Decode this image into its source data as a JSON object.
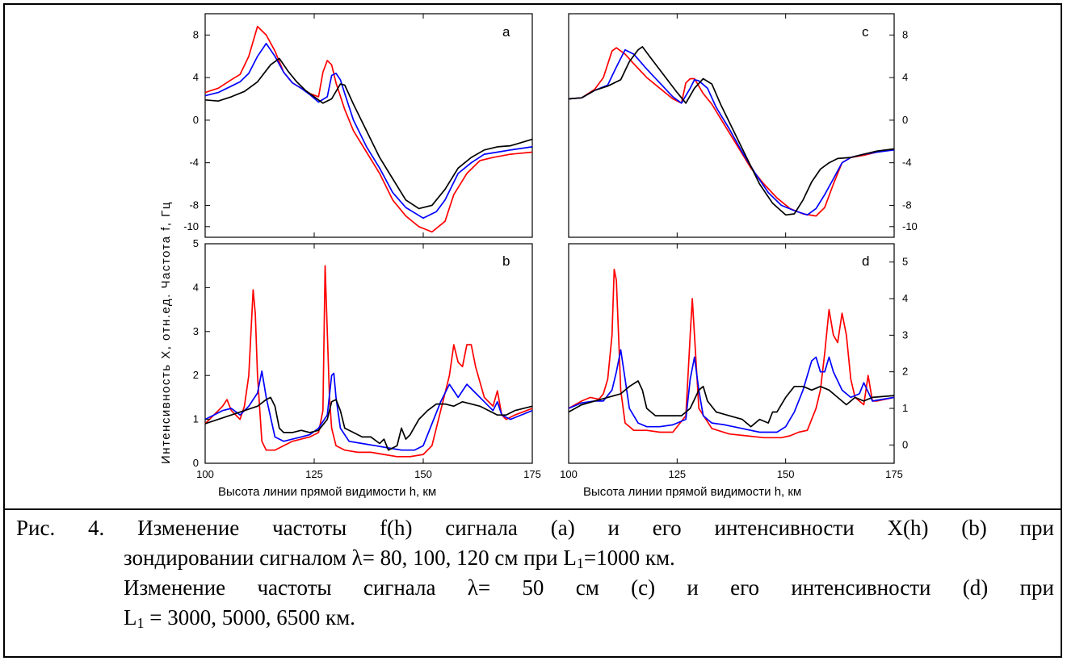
{
  "figure": {
    "y_label_left": "Интенсивность X, отн.ед.    Частота f, Гц",
    "x_label": "Высота линии прямой видимости h, км",
    "colors": {
      "red": "#ff0000",
      "blue": "#0000ff",
      "black": "#000000"
    },
    "x_ticks": [
      "100",
      "125",
      "150",
      "175"
    ]
  },
  "caption": {
    "line1": "Рис. 4. Изменение частоты f(h) сигнала (a) и его интенсивности X(h) (b) при",
    "line2": "зондировании сигналом λ= 80, 100, 120 см при L",
    "line2_sub": "1",
    "line2_end": "=1000 км.",
    "line3": "Изменение частоты сигнала λ= 50 см (c) и его интенсивности (d) при",
    "line4": "L",
    "line4_sub": "1",
    "line4_end": " = 3000, 5000, 6500 км."
  },
  "chart_data": [
    {
      "panel": "a",
      "type": "line",
      "xlabel": "",
      "ylabel": "Частота f, Гц",
      "xlim": [
        100,
        175
      ],
      "ylim": [
        -11,
        10
      ],
      "yticks": [
        -10,
        -8,
        -4,
        0,
        4,
        8
      ],
      "series": [
        {
          "color": "#ff0000",
          "x": [
            100,
            103,
            106,
            108,
            110,
            112,
            114,
            116,
            118,
            120,
            122,
            124,
            126,
            127,
            128,
            129,
            130,
            132,
            134,
            137,
            140,
            143,
            146,
            149,
            152,
            155,
            157,
            160,
            163,
            166,
            170,
            175
          ],
          "y": [
            2.6,
            3,
            3.8,
            4.3,
            6,
            8.8,
            8,
            6.5,
            4.5,
            3.5,
            3,
            2.5,
            2.2,
            4.5,
            5.6,
            5.2,
            3.5,
            1,
            -1,
            -3,
            -5,
            -7.5,
            -9,
            -10,
            -10.5,
            -9.5,
            -7,
            -5,
            -3.8,
            -3.5,
            -3.2,
            -3
          ]
        },
        {
          "color": "#0000ff",
          "x": [
            100,
            103,
            106,
            108,
            110,
            112,
            114,
            116,
            118,
            120,
            122,
            124,
            126,
            128,
            129,
            130,
            131,
            132,
            134,
            137,
            140,
            143,
            146,
            150,
            153,
            155,
            158,
            161,
            164,
            167,
            170,
            175
          ],
          "y": [
            2.3,
            2.6,
            3.2,
            3.6,
            4.4,
            6,
            7.2,
            6,
            4.5,
            3.5,
            3,
            2.4,
            1.7,
            2.2,
            4.2,
            4.4,
            3.8,
            2.5,
            0,
            -2.5,
            -4.5,
            -6.8,
            -8.2,
            -9.2,
            -8.6,
            -7.5,
            -5,
            -4,
            -3.2,
            -3,
            -2.8,
            -2.5
          ]
        },
        {
          "color": "#000000",
          "x": [
            100,
            103,
            106,
            109,
            112,
            115,
            117,
            119,
            121,
            123,
            125,
            127,
            129,
            131,
            132,
            134,
            137,
            140,
            143,
            146,
            149,
            152,
            155,
            158,
            161,
            164,
            167,
            170,
            175
          ],
          "y": [
            1.9,
            1.8,
            2.2,
            2.7,
            3.6,
            5.2,
            5.8,
            4.6,
            3.6,
            2.8,
            2.2,
            1.6,
            2,
            3.4,
            3.3,
            1.5,
            -1,
            -3.5,
            -5.5,
            -7.5,
            -8.3,
            -8,
            -6.5,
            -4.5,
            -3.5,
            -2.8,
            -2.5,
            -2.4,
            -1.8
          ]
        }
      ]
    },
    {
      "panel": "c",
      "type": "line",
      "xlabel": "",
      "ylabel": "",
      "xlim": [
        100,
        175
      ],
      "ylim": [
        -11,
        10
      ],
      "yticks": [
        -10,
        -8,
        -4,
        0,
        4,
        8
      ],
      "series": [
        {
          "color": "#ff0000",
          "x": [
            100,
            103,
            106,
            108,
            110,
            111,
            113,
            115,
            118,
            121,
            124,
            126,
            127,
            128,
            129,
            131,
            133,
            136,
            139,
            142,
            145,
            148,
            151,
            154,
            157,
            159,
            161,
            163,
            165,
            168,
            171,
            175
          ],
          "y": [
            2,
            2.1,
            2.9,
            4,
            6.5,
            6.8,
            6.2,
            5.3,
            4,
            3,
            2,
            1.6,
            3.5,
            3.9,
            3.9,
            2.5,
            1.5,
            -0.5,
            -2.5,
            -4.5,
            -6,
            -7.3,
            -8.3,
            -8.8,
            -9,
            -8.2,
            -6,
            -4,
            -3.5,
            -3.3,
            -3,
            -2.7
          ]
        },
        {
          "color": "#0000ff",
          "x": [
            100,
            103,
            106,
            109,
            111,
            113,
            115,
            118,
            121,
            124,
            126,
            128,
            129,
            130,
            132,
            134,
            137,
            140,
            143,
            146,
            149,
            152,
            155,
            157,
            159,
            161,
            163,
            165,
            168,
            171,
            175
          ],
          "y": [
            2,
            2.1,
            2.8,
            3.3,
            5,
            6.6,
            6.2,
            4.8,
            3.5,
            2.2,
            1.6,
            3,
            3.8,
            3.7,
            3,
            1.2,
            -0.8,
            -3,
            -5,
            -6.8,
            -8,
            -8.5,
            -8.9,
            -8.3,
            -7,
            -5.5,
            -4,
            -3.5,
            -3.2,
            -3,
            -2.8
          ]
        },
        {
          "color": "#000000",
          "x": [
            100,
            103,
            106,
            109,
            112,
            114,
            116,
            117,
            119,
            122,
            125,
            127,
            129,
            131,
            133,
            135,
            138,
            141,
            144,
            147,
            150,
            152,
            154,
            156,
            158,
            160,
            162,
            165,
            168,
            171,
            175
          ],
          "y": [
            2,
            2.1,
            2.8,
            3.2,
            3.8,
            5.5,
            6.6,
            6.9,
            5.8,
            4.2,
            2.6,
            1.6,
            3,
            3.9,
            3.4,
            1.5,
            -1,
            -3.5,
            -6,
            -7.8,
            -8.9,
            -8.8,
            -7.5,
            -5.8,
            -4.6,
            -4,
            -3.6,
            -3.5,
            -3.2,
            -2.9,
            -2.7
          ]
        }
      ]
    },
    {
      "panel": "b",
      "type": "line",
      "xlabel": "Высота линии прямой видимости h, км",
      "ylabel": "Интенсивность X, отн.ед.",
      "xlim": [
        100,
        175
      ],
      "ylim": [
        0,
        5
      ],
      "yticks": [
        0,
        1,
        2,
        3,
        4,
        5
      ],
      "series": [
        {
          "color": "#ff0000",
          "x": [
            100,
            102,
            104,
            105,
            106,
            108,
            109,
            110,
            111,
            111.5,
            112,
            113,
            114,
            116,
            118,
            120,
            122,
            124,
            126,
            127,
            127.5,
            128,
            128.5,
            129,
            130,
            132,
            135,
            138,
            141,
            144,
            147,
            150,
            152,
            154,
            156,
            157,
            158,
            159,
            160,
            161,
            162,
            164,
            166,
            167,
            168,
            169,
            171,
            175
          ],
          "y": [
            0.9,
            1.1,
            1.3,
            1.45,
            1.2,
            1,
            1.3,
            2,
            3.95,
            3.4,
            2,
            0.5,
            0.3,
            0.3,
            0.4,
            0.5,
            0.55,
            0.6,
            0.7,
            1.2,
            4.5,
            3,
            1.5,
            0.8,
            0.4,
            0.3,
            0.25,
            0.25,
            0.2,
            0.15,
            0.15,
            0.2,
            0.4,
            1.2,
            2,
            2.7,
            2.3,
            2.2,
            2.7,
            2.7,
            2.2,
            1.5,
            1.3,
            1.65,
            1.1,
            1,
            1.1,
            1.25
          ]
        },
        {
          "color": "#0000ff",
          "x": [
            100,
            102,
            104,
            106,
            108,
            110,
            111,
            112,
            113,
            114,
            116,
            118,
            120,
            122,
            124,
            126,
            128,
            129,
            129.5,
            130,
            131,
            133,
            136,
            139,
            142,
            145,
            148,
            150,
            152,
            154,
            156,
            158,
            160,
            162,
            164,
            166,
            167,
            168,
            170,
            175
          ],
          "y": [
            1,
            1.1,
            1.2,
            1.25,
            1.1,
            1.3,
            1.45,
            1.6,
            2.1,
            1.5,
            0.6,
            0.5,
            0.55,
            0.6,
            0.65,
            0.8,
            1.1,
            2,
            2.05,
            1.5,
            0.8,
            0.5,
            0.45,
            0.4,
            0.35,
            0.3,
            0.3,
            0.4,
            0.9,
            1.4,
            1.8,
            1.5,
            1.8,
            1.6,
            1.4,
            1.2,
            1.4,
            1.1,
            1,
            1.2
          ]
        },
        {
          "color": "#000000",
          "x": [
            100,
            103,
            106,
            109,
            112,
            114,
            115,
            116,
            117,
            118,
            120,
            122,
            124,
            126,
            128,
            129,
            130,
            131,
            132,
            134,
            136,
            138,
            140,
            141,
            142,
            144,
            145,
            146,
            147,
            149,
            151,
            153,
            155,
            157,
            159,
            161,
            163,
            165,
            167,
            169,
            171,
            175
          ],
          "y": [
            0.9,
            1,
            1.1,
            1.2,
            1.3,
            1.45,
            1.5,
            1.3,
            0.8,
            0.7,
            0.7,
            0.75,
            0.7,
            0.75,
            1,
            1.4,
            1.45,
            1.2,
            0.8,
            0.7,
            0.6,
            0.6,
            0.45,
            0.55,
            0.3,
            0.4,
            0.8,
            0.55,
            0.65,
            1,
            1.2,
            1.35,
            1.35,
            1.3,
            1.4,
            1.35,
            1.3,
            1.2,
            1.1,
            1.1,
            1.2,
            1.3
          ]
        }
      ]
    },
    {
      "panel": "d",
      "type": "line",
      "xlabel": "Высота линии прямой видимости h, км",
      "ylabel": "",
      "xlim": [
        100,
        175
      ],
      "ylim": [
        -0.5,
        5.5
      ],
      "yticks": [
        0,
        1,
        2,
        3,
        4,
        5
      ],
      "series": [
        {
          "color": "#ff0000",
          "x": [
            100,
            103,
            105,
            107,
            108,
            109,
            110,
            110.5,
            111,
            111.5,
            112,
            113,
            115,
            118,
            121,
            124,
            127,
            128,
            128.5,
            129,
            130,
            133,
            137,
            141,
            145,
            149,
            151,
            153,
            155,
            157,
            158,
            159,
            160,
            161,
            162,
            163,
            164,
            165,
            166,
            168,
            169,
            170,
            171,
            175
          ],
          "y": [
            1,
            1.2,
            1.3,
            1.25,
            1.4,
            1.8,
            3,
            4.8,
            4.5,
            3,
            1.5,
            0.6,
            0.4,
            0.4,
            0.35,
            0.35,
            0.8,
            3,
            4,
            3,
            1,
            0.45,
            0.3,
            0.25,
            0.2,
            0.2,
            0.25,
            0.35,
            0.4,
            1,
            1.5,
            2.5,
            3.7,
            3,
            2.8,
            3.6,
            3,
            1.8,
            1.3,
            1.1,
            1.9,
            1.2,
            1.2,
            1.3
          ]
        },
        {
          "color": "#0000ff",
          "x": [
            100,
            103,
            106,
            108,
            110,
            111,
            112,
            113,
            114,
            116,
            118,
            121,
            124,
            127,
            128,
            129,
            130,
            131,
            133,
            136,
            140,
            144,
            148,
            150,
            152,
            154,
            156,
            157,
            158,
            159,
            160,
            161,
            163,
            165,
            167,
            168,
            170,
            175
          ],
          "y": [
            1,
            1.15,
            1.2,
            1.2,
            1.5,
            2,
            2.6,
            1.8,
            1,
            0.6,
            0.5,
            0.5,
            0.55,
            0.7,
            1.8,
            2.4,
            1.5,
            0.8,
            0.6,
            0.55,
            0.45,
            0.35,
            0.35,
            0.5,
            0.9,
            1.5,
            2.3,
            2.4,
            2,
            2,
            2.4,
            2,
            1.5,
            1.3,
            1.4,
            1.7,
            1.2,
            1.3
          ]
        },
        {
          "color": "#000000",
          "x": [
            100,
            103,
            106,
            109,
            112,
            114,
            116,
            117,
            118,
            120,
            123,
            126,
            128,
            130,
            131,
            132,
            134,
            137,
            140,
            142,
            144,
            146,
            147,
            148,
            150,
            152,
            154,
            156,
            158,
            160,
            162,
            164,
            166,
            168,
            170,
            175
          ],
          "y": [
            0.9,
            1.1,
            1.2,
            1.3,
            1.4,
            1.6,
            1.75,
            1.5,
            1,
            0.8,
            0.8,
            0.8,
            1,
            1.5,
            1.6,
            1.2,
            0.9,
            0.8,
            0.7,
            0.5,
            0.7,
            0.6,
            0.9,
            0.9,
            1.3,
            1.6,
            1.6,
            1.5,
            1.6,
            1.5,
            1.3,
            1.1,
            1.3,
            1.2,
            1.3,
            1.35
          ]
        }
      ]
    }
  ]
}
